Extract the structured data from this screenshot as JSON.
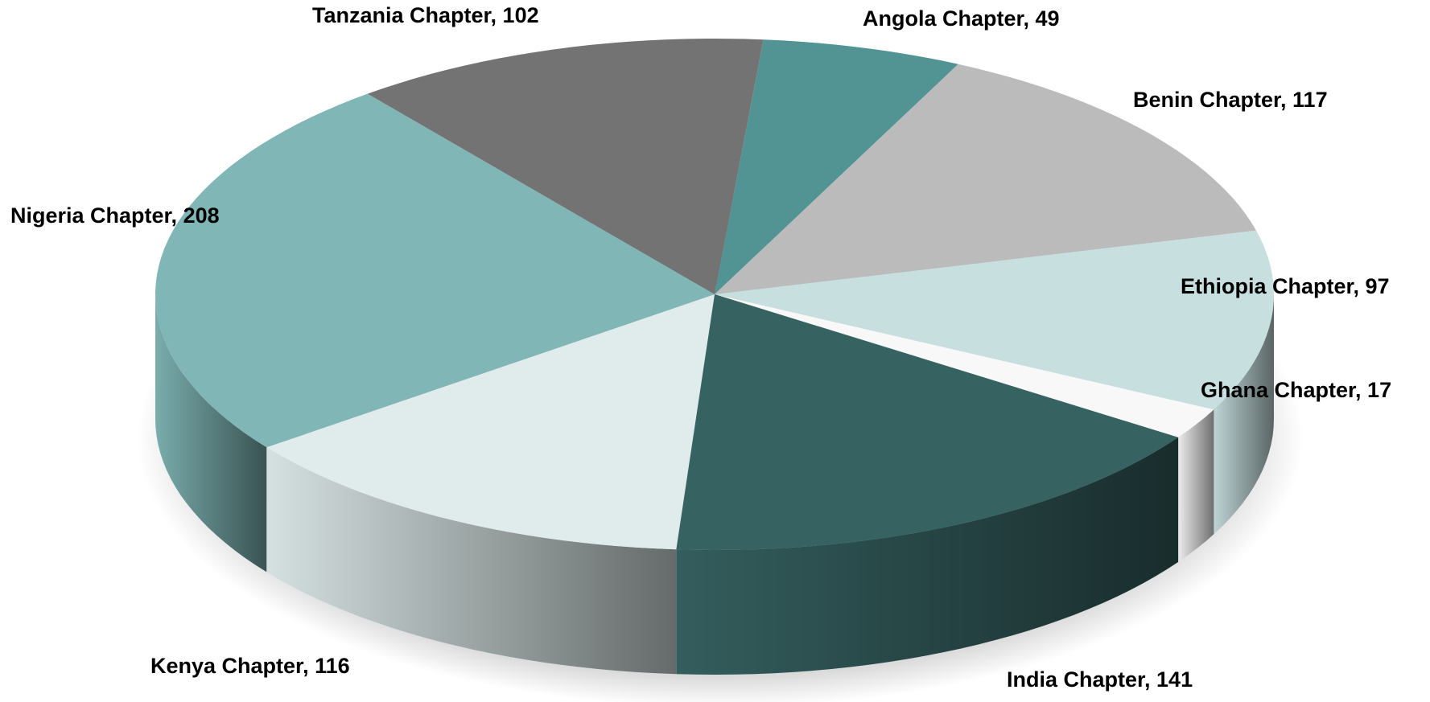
{
  "chart_data": {
    "type": "pie3d",
    "values": [
      49,
      117,
      97,
      17,
      141,
      116,
      208,
      102
    ],
    "value_labels": [
      "Angola Chapter, 49",
      "Benin Chapter, 117",
      "Ethiopia Chapter, 97",
      "Ghana Chapter, 17",
      "India Chapter, 141",
      "Kenya Chapter, 116",
      "Nigeria Chapter, 208",
      "Tanzania Chapter, 102"
    ],
    "colors": [
      "#529494",
      "#bbbbbb",
      "#c8dfe0",
      "#f8f8f8",
      "#376262",
      "#e0ecec",
      "#80b6b6",
      "#737373"
    ],
    "start_angle": 5
  }
}
